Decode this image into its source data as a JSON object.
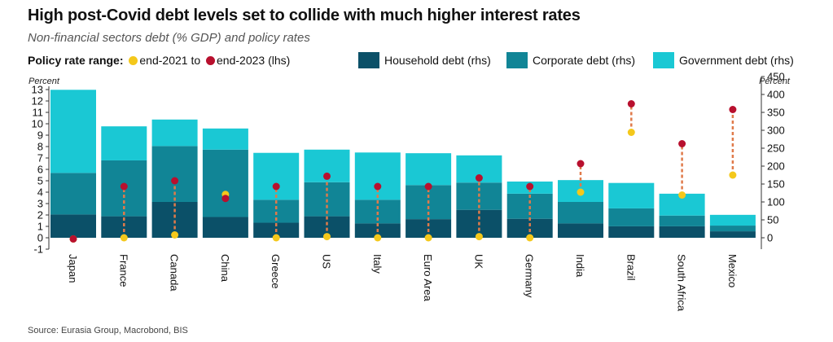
{
  "title": "High post-Covid debt levels set to collide with much higher interest rates",
  "subtitle": "Non-financial sectors debt (% GDP) and policy rates",
  "legend": {
    "policy_label": "Policy rate range:",
    "end2021": "end-2021 to",
    "end2023": "end-2023 (lhs)",
    "household": "Household debt (rhs)",
    "corporate": "Corporate debt (rhs)",
    "government": "Government debt (rhs)"
  },
  "source": "Source: Eurasia Group, Macrobond, BIS",
  "colors": {
    "household": "#0b5068",
    "corporate": "#118596",
    "government": "#1ac8d4",
    "end2021": "#f4c81b",
    "end2023": "#b8102e",
    "connector": "#e07a4a"
  },
  "chart_data": {
    "type": "bar",
    "stacked": true,
    "categories": [
      "Japan",
      "France",
      "Canada",
      "China",
      "Greece",
      "US",
      "Italy",
      "Euro Area",
      "UK",
      "Germany",
      "India",
      "Brazil",
      "South Africa",
      "Mexico"
    ],
    "series": [
      {
        "name": "Household debt (rhs)",
        "axis": "right",
        "values": [
          65,
          60,
          100,
          58,
          42,
          60,
          40,
          52,
          78,
          53,
          40,
          32,
          32,
          18
        ]
      },
      {
        "name": "Corporate debt (rhs)",
        "axis": "right",
        "values": [
          116,
          156,
          156,
          188,
          64,
          95,
          66,
          95,
          76,
          70,
          60,
          50,
          30,
          16
        ]
      },
      {
        "name": "Government debt (rhs)",
        "axis": "right",
        "values": [
          232,
          95,
          74,
          59,
          131,
          91,
          132,
          89,
          76,
          34,
          61,
          71,
          61,
          30
        ]
      }
    ],
    "policy_rates": {
      "axis": "left",
      "end_2021": [
        -0.1,
        0.0,
        0.25,
        3.8,
        0.0,
        0.1,
        0.0,
        0.0,
        0.1,
        0.0,
        4.0,
        9.25,
        3.75,
        5.5
      ],
      "end_2023": [
        -0.1,
        4.5,
        5.0,
        3.45,
        4.5,
        5.4,
        4.5,
        4.5,
        5.25,
        4.5,
        6.5,
        11.75,
        8.25,
        11.25
      ]
    },
    "left_axis": {
      "label": "Percent",
      "range": [
        -1,
        13
      ],
      "ticks": [
        "-1",
        "0",
        "1",
        "2",
        "3",
        "4",
        "5",
        "6",
        "7",
        "8",
        "9",
        "10",
        "11",
        "12",
        "13"
      ]
    },
    "right_axis": {
      "label": "Percent",
      "range": [
        0,
        450
      ],
      "ticks": [
        "0",
        "50",
        "100",
        "150",
        "200",
        "250",
        "300",
        "350",
        "400",
        "450"
      ]
    }
  }
}
